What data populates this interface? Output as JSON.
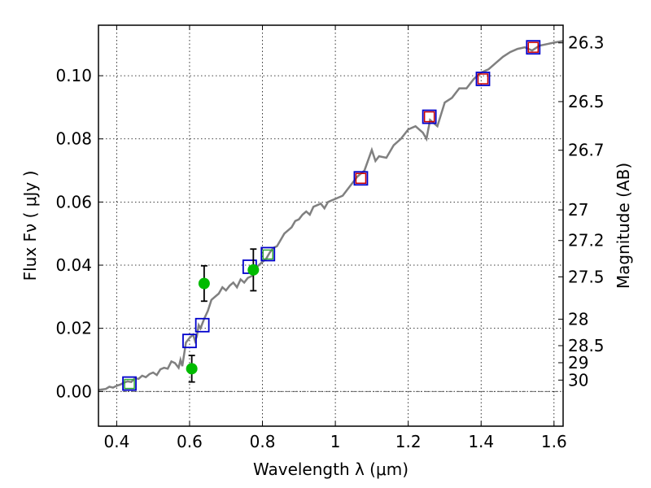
{
  "chart_data": {
    "type": "scatter",
    "xlabel": "Wavelength  λ (μm)",
    "ylabel_left": "Flux  Fν  ( μJy )",
    "ylabel_right": "Magnitude (AB)",
    "xlim": [
      0.35,
      1.625
    ],
    "ylim": [
      -0.011,
      0.116
    ],
    "grid": true,
    "x_ticks": [
      0.4,
      0.6,
      0.8,
      1.0,
      1.2,
      1.4,
      1.6
    ],
    "x_tick_labels": [
      "0.4",
      "0.6",
      "0.8",
      "1",
      "1.2",
      "1.4",
      "1.6"
    ],
    "y_ticks": [
      0.0,
      0.02,
      0.04,
      0.06,
      0.08,
      0.1
    ],
    "y_tick_labels": [
      "0.00",
      "0.02",
      "0.04",
      "0.06",
      "0.08",
      "0.10"
    ],
    "right_ticks": [
      {
        "label": "26.3",
        "flux": 0.1104
      },
      {
        "label": "26.5",
        "flux": 0.0918
      },
      {
        "label": "26.7",
        "flux": 0.0764
      },
      {
        "label": "27",
        "flux": 0.0575
      },
      {
        "label": "27.2",
        "flux": 0.0478
      },
      {
        "label": "27.5",
        "flux": 0.0363
      },
      {
        "label": "28",
        "flux": 0.0229
      },
      {
        "label": "28.5",
        "flux": 0.0145
      },
      {
        "label": "29",
        "flux": 0.0091
      },
      {
        "label": "30",
        "flux": 0.0036
      }
    ],
    "colors": {
      "sed_line": "#808080",
      "open_square": "#0000cc",
      "inner_square_red": "#cc0000",
      "inner_square_green": "#33aa33",
      "filled_circle": "#00bb00",
      "error_bar": "#000000"
    },
    "series": [
      {
        "kind": "line",
        "x": [
          0.35,
          0.37,
          0.38,
          0.39,
          0.4,
          0.41,
          0.42,
          0.43,
          0.44,
          0.45,
          0.46,
          0.47,
          0.48,
          0.49,
          0.5,
          0.51,
          0.52,
          0.53,
          0.54,
          0.55,
          0.56,
          0.57,
          0.575,
          0.58,
          0.59,
          0.6,
          0.61,
          0.615,
          0.62,
          0.625,
          0.63,
          0.64,
          0.65,
          0.66,
          0.67,
          0.68,
          0.69,
          0.7,
          0.71,
          0.72,
          0.73,
          0.74,
          0.75,
          0.76,
          0.77,
          0.78,
          0.79,
          0.8,
          0.81,
          0.82,
          0.83,
          0.84,
          0.85,
          0.86,
          0.87,
          0.88,
          0.89,
          0.9,
          0.91,
          0.92,
          0.93,
          0.94,
          0.95,
          0.96,
          0.97,
          0.98,
          0.99,
          1.0,
          1.02,
          1.04,
          1.06,
          1.08,
          1.1,
          1.11,
          1.12,
          1.14,
          1.16,
          1.18,
          1.2,
          1.22,
          1.24,
          1.25,
          1.26,
          1.27,
          1.28,
          1.3,
          1.32,
          1.34,
          1.36,
          1.38,
          1.4,
          1.42,
          1.44,
          1.46,
          1.48,
          1.5,
          1.52,
          1.54,
          1.56,
          1.58,
          1.6,
          1.625
        ],
        "y": [
          0.0005,
          0.0008,
          0.0015,
          0.0012,
          0.0018,
          0.0022,
          0.0028,
          0.0032,
          0.003,
          0.0042,
          0.004,
          0.005,
          0.0045,
          0.0055,
          0.006,
          0.0052,
          0.007,
          0.0075,
          0.0072,
          0.0095,
          0.009,
          0.0075,
          0.01,
          0.008,
          0.0155,
          0.017,
          0.018,
          0.016,
          0.0175,
          0.021,
          0.02,
          0.023,
          0.0255,
          0.029,
          0.03,
          0.031,
          0.033,
          0.032,
          0.0335,
          0.0345,
          0.033,
          0.0355,
          0.0345,
          0.036,
          0.0365,
          0.039,
          0.04,
          0.041,
          0.042,
          0.044,
          0.0455,
          0.046,
          0.048,
          0.05,
          0.051,
          0.052,
          0.054,
          0.0545,
          0.056,
          0.057,
          0.056,
          0.0585,
          0.059,
          0.0595,
          0.058,
          0.06,
          0.0605,
          0.061,
          0.062,
          0.065,
          0.068,
          0.07,
          0.0765,
          0.073,
          0.0745,
          0.074,
          0.078,
          0.08,
          0.083,
          0.084,
          0.082,
          0.08,
          0.086,
          0.085,
          0.084,
          0.0915,
          0.093,
          0.096,
          0.096,
          0.099,
          0.101,
          0.102,
          0.104,
          0.106,
          0.1075,
          0.1085,
          0.109,
          0.108,
          0.1095,
          0.11,
          0.1105,
          0.111
        ]
      },
      {
        "kind": "open_square",
        "x": [
          0.435,
          0.6,
          0.635,
          0.765,
          0.815,
          1.07,
          1.258,
          1.405,
          1.543
        ],
        "y": [
          0.0025,
          0.016,
          0.021,
          0.0395,
          0.0435,
          0.0675,
          0.087,
          0.099,
          0.109
        ],
        "inner": [
          "green",
          "none",
          "none",
          "none",
          "green",
          "red",
          "red",
          "red",
          "red"
        ]
      },
      {
        "kind": "filled_circle_errorbar",
        "x": [
          0.606,
          0.64,
          0.775
        ],
        "y": [
          0.0072,
          0.0342,
          0.0385
        ],
        "yerr": [
          0.0042,
          0.0056,
          0.0066
        ]
      }
    ]
  }
}
